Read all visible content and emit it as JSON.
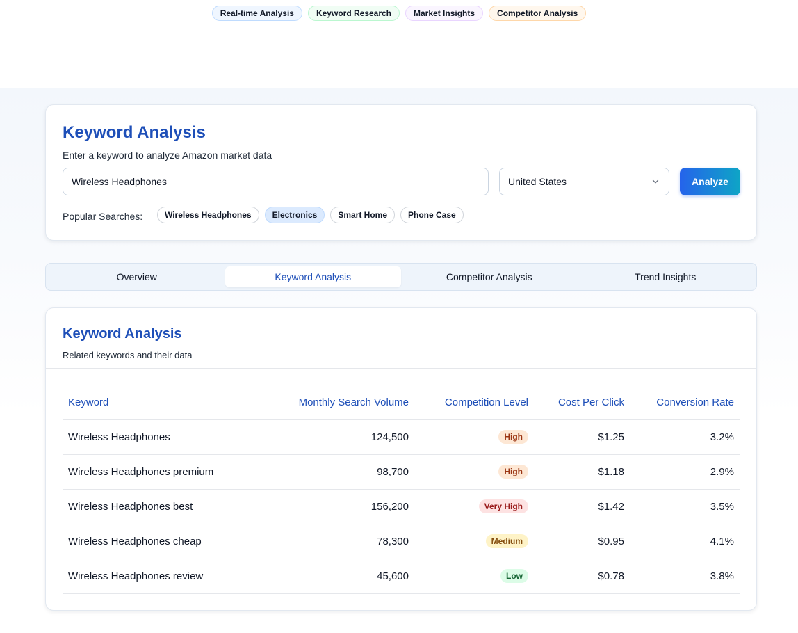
{
  "top_tags": [
    {
      "label": "Real-time Analysis",
      "color": "#eff6ff"
    },
    {
      "label": "Keyword Research",
      "color": "#f0fdf4"
    },
    {
      "label": "Market Insights",
      "color": "#faf5ff"
    },
    {
      "label": "Competitor Analysis",
      "color": "#fff7ed"
    }
  ],
  "search": {
    "title": "Keyword Analysis",
    "subtitle": "Enter a keyword to analyze Amazon market data",
    "keyword_value": "Wireless Headphones",
    "country_value": "United States",
    "analyze_label": "Analyze",
    "popular_label": "Popular Searches:",
    "popular": [
      "Wireless Headphones",
      "Electronics",
      "Smart Home",
      "Phone Case"
    ]
  },
  "tabs": [
    "Overview",
    "Keyword Analysis",
    "Competitor Analysis",
    "Trend Insights"
  ],
  "keyword_table": {
    "title": "Keyword Analysis",
    "subtitle": "Related keywords and their data",
    "headers": [
      "Keyword",
      "Monthly Search Volume",
      "Competition Level",
      "Cost Per Click",
      "Conversion Rate"
    ],
    "rows": [
      {
        "keyword": "Wireless Headphones",
        "volume": "124,500",
        "competition": "High",
        "cpc": "$1.25",
        "conversion": "3.2%"
      },
      {
        "keyword": "Wireless Headphones premium",
        "volume": "98,700",
        "competition": "High",
        "cpc": "$1.18",
        "conversion": "2.9%"
      },
      {
        "keyword": "Wireless Headphones best",
        "volume": "156,200",
        "competition": "Very High",
        "cpc": "$1.42",
        "conversion": "3.5%"
      },
      {
        "keyword": "Wireless Headphones cheap",
        "volume": "78,300",
        "competition": "Medium",
        "cpc": "$0.95",
        "conversion": "4.1%"
      },
      {
        "keyword": "Wireless Headphones review",
        "volume": "45,600",
        "competition": "Low",
        "cpc": "$0.78",
        "conversion": "3.8%"
      }
    ]
  },
  "colors": {
    "accent": "#1e4fb8",
    "button_gradient_start": "#2563eb",
    "button_gradient_end": "#0ea5c6"
  }
}
